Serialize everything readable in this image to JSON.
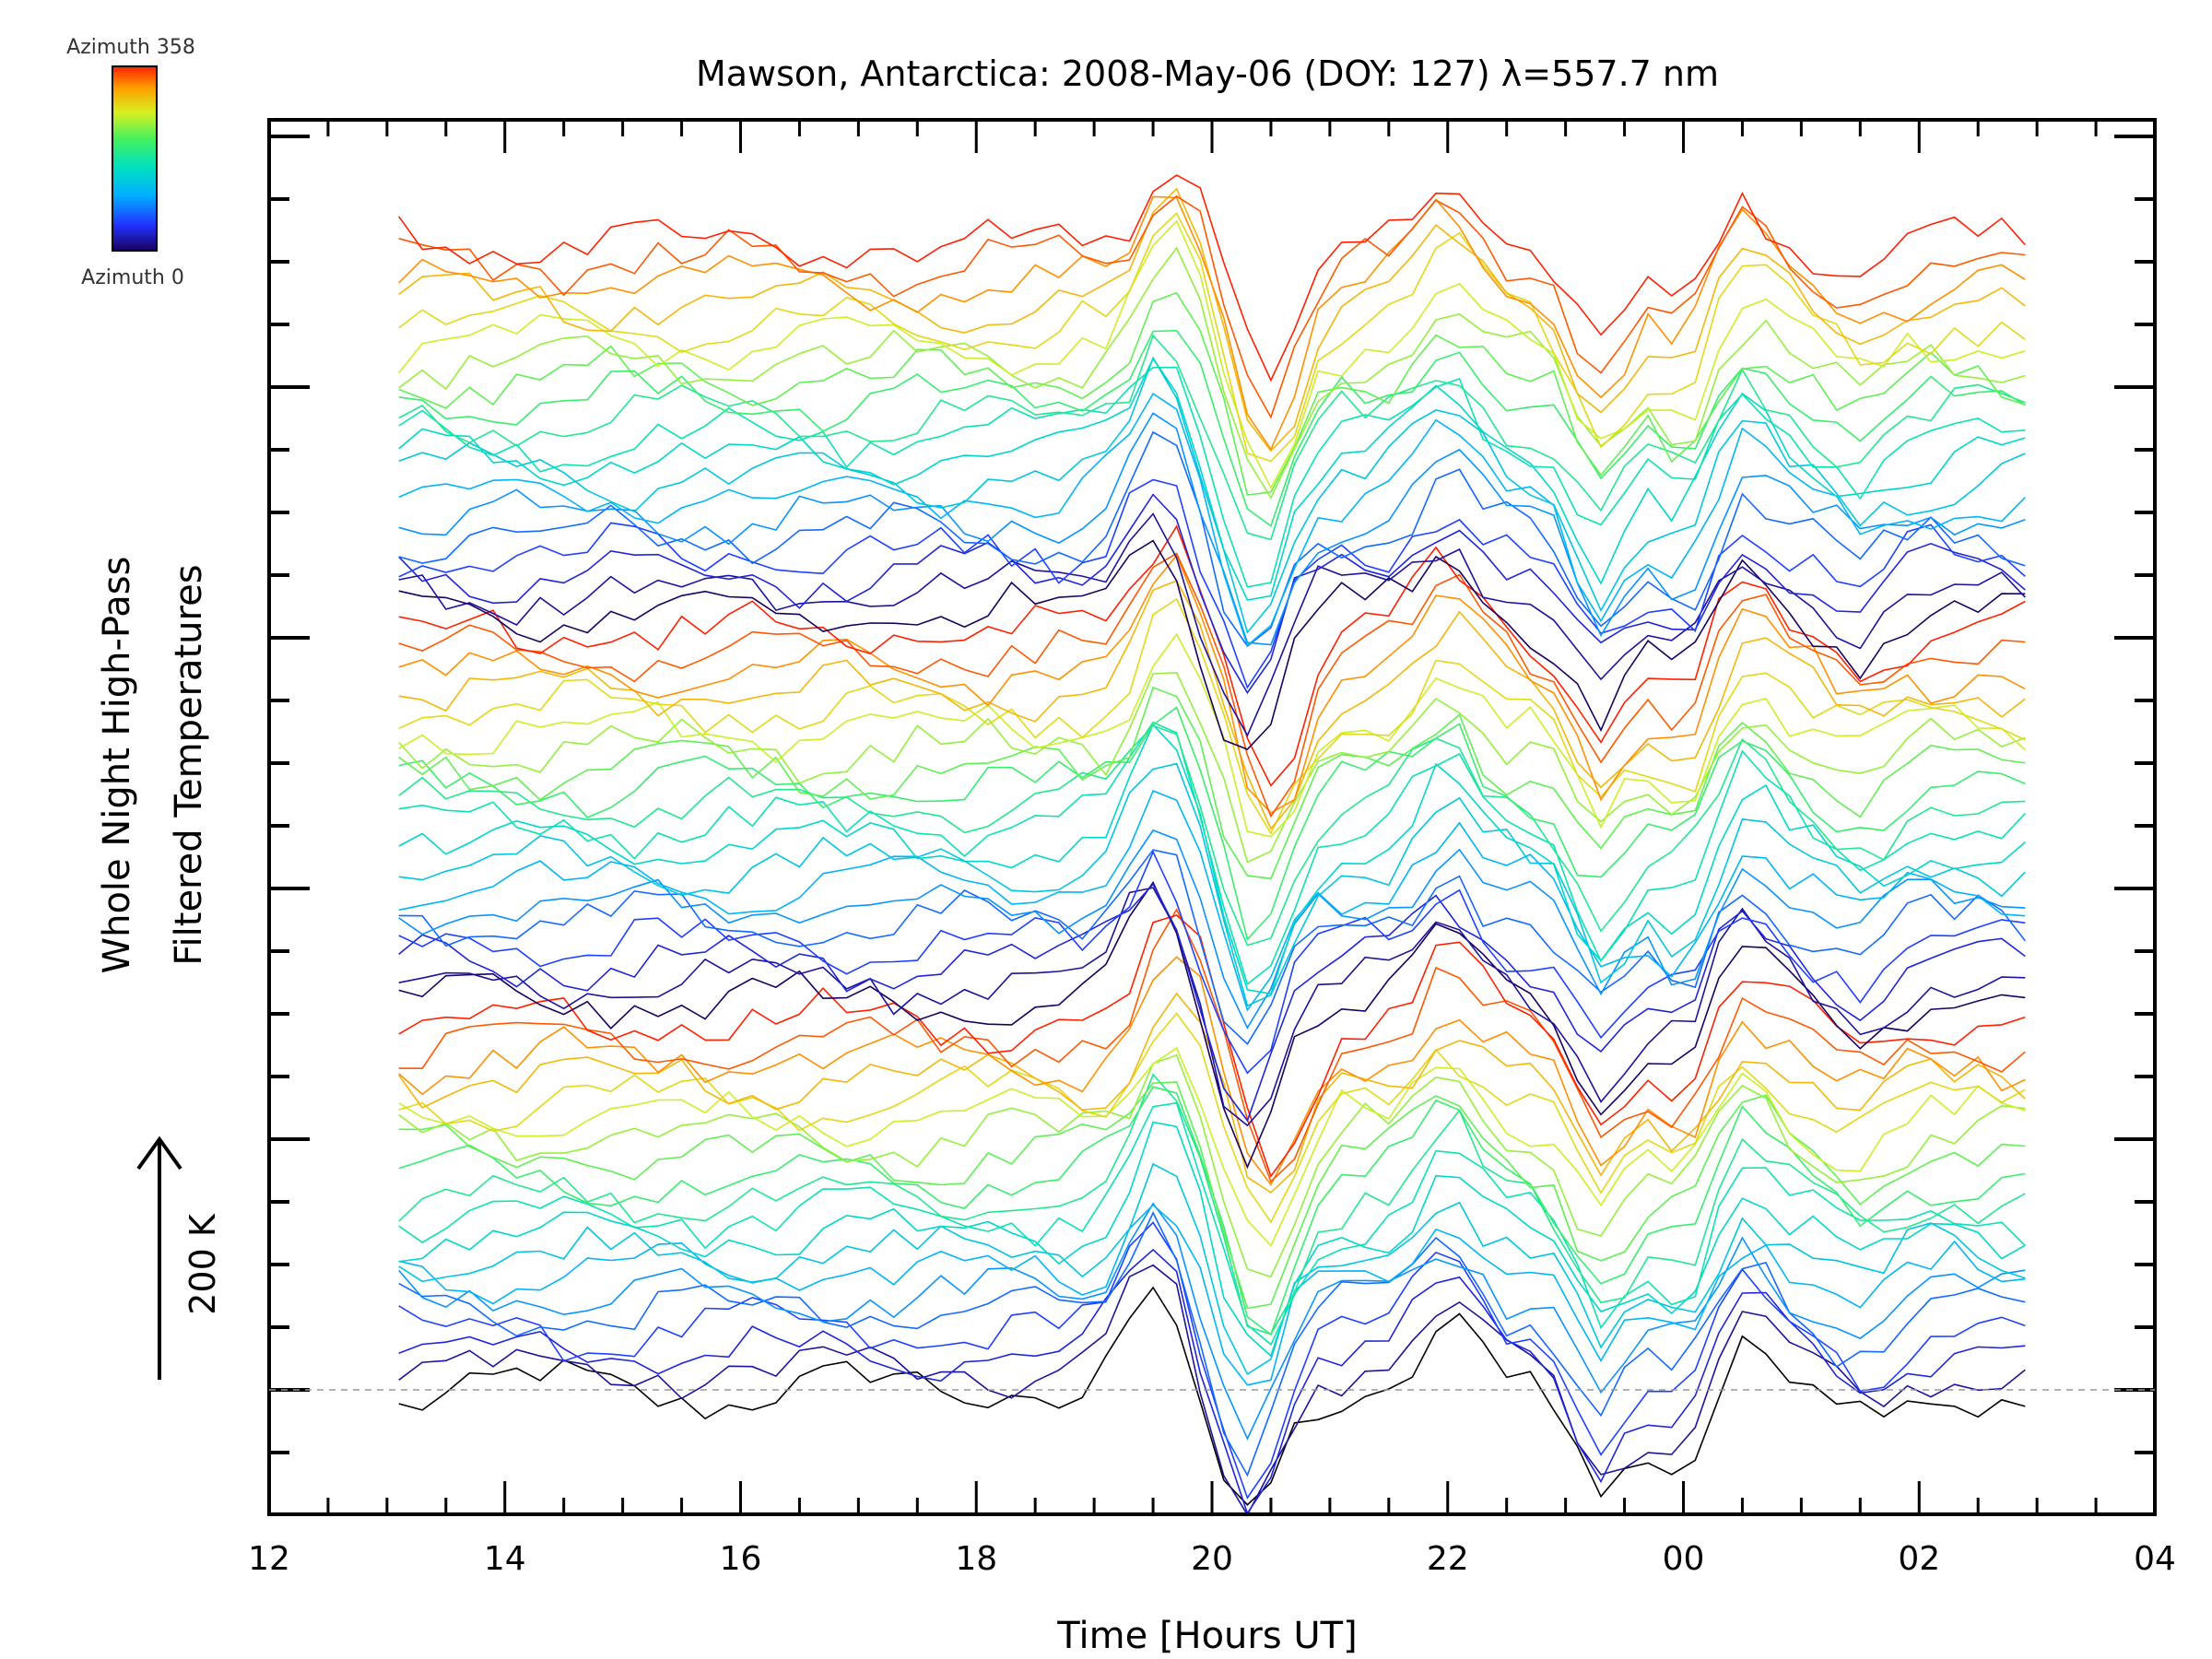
{
  "chart_data": {
    "type": "line",
    "title": "Mawson, Antarctica: 2008-May-06 (DOY: 127) λ=557.7 nm",
    "xlabel": "Time [Hours UT]",
    "ylabel_line1": "Whole Night High-Pass",
    "ylabel_line2": "Filtered Temperatures",
    "x_tick_labels": [
      "12",
      "14",
      "16",
      "18",
      "20",
      "22",
      "00",
      "02",
      "04"
    ],
    "xlim_hours": [
      12,
      28
    ],
    "data_xrange_hours": [
      13.1,
      26.95
    ],
    "scale_bar_label": "200 K",
    "colorbar": {
      "top_label": "Azimuth 358",
      "bottom_label": "Azimuth 0",
      "colormap": "rainbow",
      "azimuth_range_deg": [
        0,
        358
      ]
    },
    "baseline_line": "dashed gray at bottom trace offset",
    "grid": false,
    "legend": "colorbar top-left",
    "series_count": 60,
    "traces_note": "Stacked high-pass filtered temperature traces, one per azimuth, vertically offset; colour indicates azimuth.",
    "shared_features": [
      {
        "time_hours": 19.6,
        "kind": "peak",
        "amplitude": 1.8
      },
      {
        "time_hours": 20.4,
        "kind": "trough",
        "amplitude": -2.5
      },
      {
        "time_hours": 22.0,
        "kind": "peak",
        "amplitude": 1.1
      },
      {
        "time_hours": 23.3,
        "kind": "trough",
        "amplitude": -1.8
      },
      {
        "time_hours": 24.0,
        "kind": "trough",
        "amplitude": -1.2
      },
      {
        "time_hours": 24.5,
        "kind": "peak",
        "amplitude": 0.9
      },
      {
        "time_hours": 25.5,
        "kind": "trough",
        "amplitude": -0.6
      }
    ]
  }
}
